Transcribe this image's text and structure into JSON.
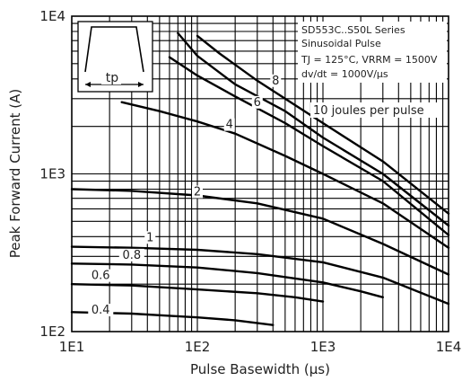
{
  "chart_data": {
    "type": "line",
    "x_scale": "log",
    "y_scale": "log",
    "xlim": [
      10,
      10000
    ],
    "ylim": [
      100,
      10000
    ],
    "xlabel": "Pulse Basewidth (µs)",
    "ylabel": "Peak Forward Current (A)",
    "x_ticks": [
      "1E1",
      "1E2",
      "1E3",
      "1E4"
    ],
    "y_ticks": [
      "1E2",
      "1E3",
      "1E4"
    ],
    "grid": true,
    "inset": {
      "label": "tp",
      "lines": [
        "SD553C..S50L Series",
        "Sinusoidal Pulse",
        "TJ = 125°C, VRRM = 1500V",
        "dv/dt = 1000V/µs"
      ]
    },
    "energy_label": "10 joules per pulse",
    "series": [
      {
        "name": "0.4",
        "x": [
          10,
          30,
          60,
          100,
          200,
          400
        ],
        "y": [
          133,
          130,
          126,
          123,
          118,
          110
        ]
      },
      {
        "name": "0.6",
        "x": [
          10,
          30,
          100,
          300,
          600,
          1000
        ],
        "y": [
          200,
          196,
          185,
          175,
          165,
          155
        ]
      },
      {
        "name": "0.8",
        "x": [
          10,
          30,
          100,
          300,
          1000,
          2000,
          3000
        ],
        "y": [
          270,
          266,
          255,
          235,
          205,
          180,
          165
        ]
      },
      {
        "name": "1",
        "x": [
          10,
          30,
          100,
          300,
          1000,
          3000,
          10000
        ],
        "y": [
          345,
          340,
          330,
          310,
          275,
          220,
          150
        ]
      },
      {
        "name": "2",
        "x": [
          10,
          30,
          100,
          300,
          1000,
          3000,
          10000
        ],
        "y": [
          800,
          780,
          730,
          650,
          520,
          360,
          230
        ]
      },
      {
        "name": "4",
        "x": [
          25,
          50,
          100,
          200,
          500,
          1000,
          3000,
          10000
        ],
        "y": [
          2850,
          2500,
          2150,
          1800,
          1300,
          1000,
          650,
          340
        ]
      },
      {
        "name": "6",
        "x": [
          60,
          100,
          200,
          500,
          1000,
          3000,
          10000
        ],
        "y": [
          5500,
          4200,
          3100,
          2100,
          1500,
          900,
          410
        ]
      },
      {
        "name": "8",
        "x": [
          70,
          100,
          200,
          500,
          1000,
          3000,
          10000
        ],
        "y": [
          7800,
          5600,
          3700,
          2500,
          1700,
          1000,
          470
        ]
      },
      {
        "name": "10",
        "x": [
          100,
          150,
          300,
          1000,
          3000,
          10000
        ],
        "y": [
          7500,
          5800,
          3900,
          2100,
          1200,
          560
        ]
      }
    ],
    "curve_label_positions": {
      "0.4": [
        8.0,
        4.2
      ],
      "0.6": [
        11.3,
        6.0
      ],
      "0.8": [
        20.5,
        8.2
      ],
      "1": [
        25.0,
        10.5
      ],
      "2": [
        80.0,
        21.0
      ],
      "4": [
        470.0,
        15.0
      ],
      "6": [
        650.0,
        20.0
      ],
      "8": [
        900.0,
        27.0
      ]
    }
  }
}
